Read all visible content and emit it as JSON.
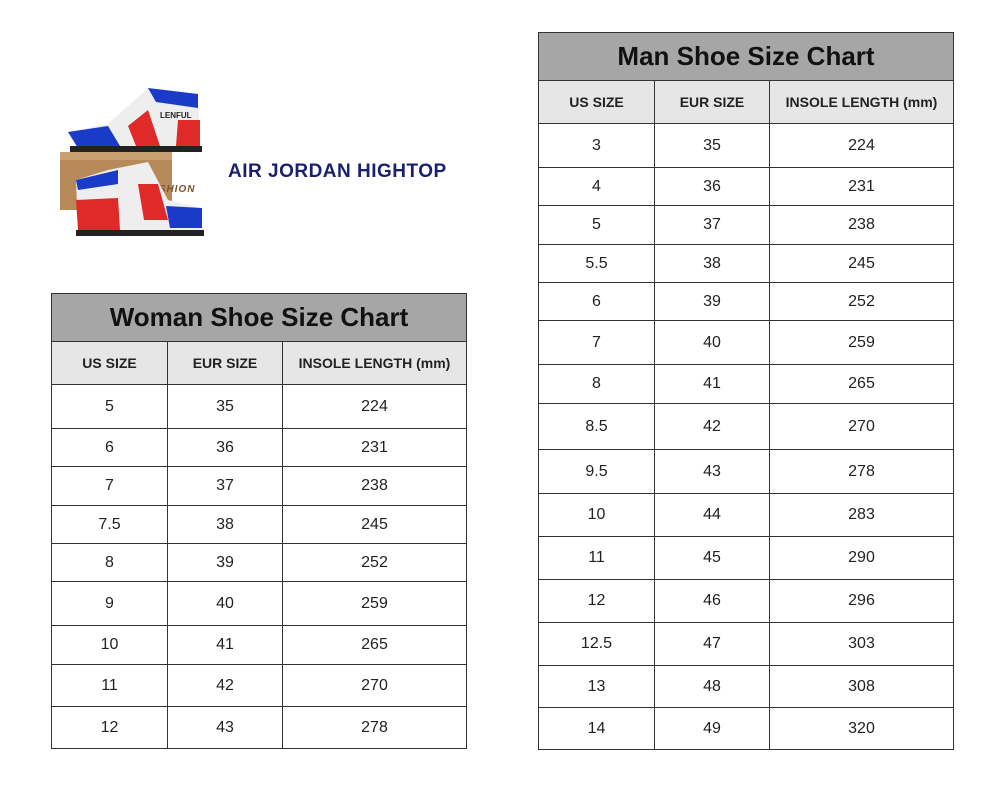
{
  "product": {
    "title": "AIR JORDAN HIGHTOP",
    "image_logo_text": "LENFUL",
    "box_text": "FASHION"
  },
  "columns": [
    "US SIZE",
    "EUR SIZE",
    "INSOLE LENGTH (mm)"
  ],
  "woman": {
    "title": "Woman Shoe Size Chart",
    "rows": [
      [
        "5",
        "35",
        "224"
      ],
      [
        "6",
        "36",
        "231"
      ],
      [
        "7",
        "37",
        "238"
      ],
      [
        "7.5",
        "38",
        "245"
      ],
      [
        "8",
        "39",
        "252"
      ],
      [
        "9",
        "40",
        "259"
      ],
      [
        "10",
        "41",
        "265"
      ],
      [
        "11",
        "42",
        "270"
      ],
      [
        "12",
        "43",
        "278"
      ]
    ]
  },
  "man": {
    "title": "Man Shoe Size Chart",
    "rows": [
      [
        "3",
        "35",
        "224"
      ],
      [
        "4",
        "36",
        "231"
      ],
      [
        "5",
        "37",
        "238"
      ],
      [
        "5.5",
        "38",
        "245"
      ],
      [
        "6",
        "39",
        "252"
      ],
      [
        "7",
        "40",
        "259"
      ],
      [
        "8",
        "41",
        "265"
      ],
      [
        "8.5",
        "42",
        "270"
      ],
      [
        "9.5",
        "43",
        "278"
      ],
      [
        "10",
        "44",
        "283"
      ],
      [
        "11",
        "45",
        "290"
      ],
      [
        "12",
        "46",
        "296"
      ],
      [
        "12.5",
        "47",
        "303"
      ],
      [
        "13",
        "48",
        "308"
      ],
      [
        "14",
        "49",
        "320"
      ]
    ]
  }
}
